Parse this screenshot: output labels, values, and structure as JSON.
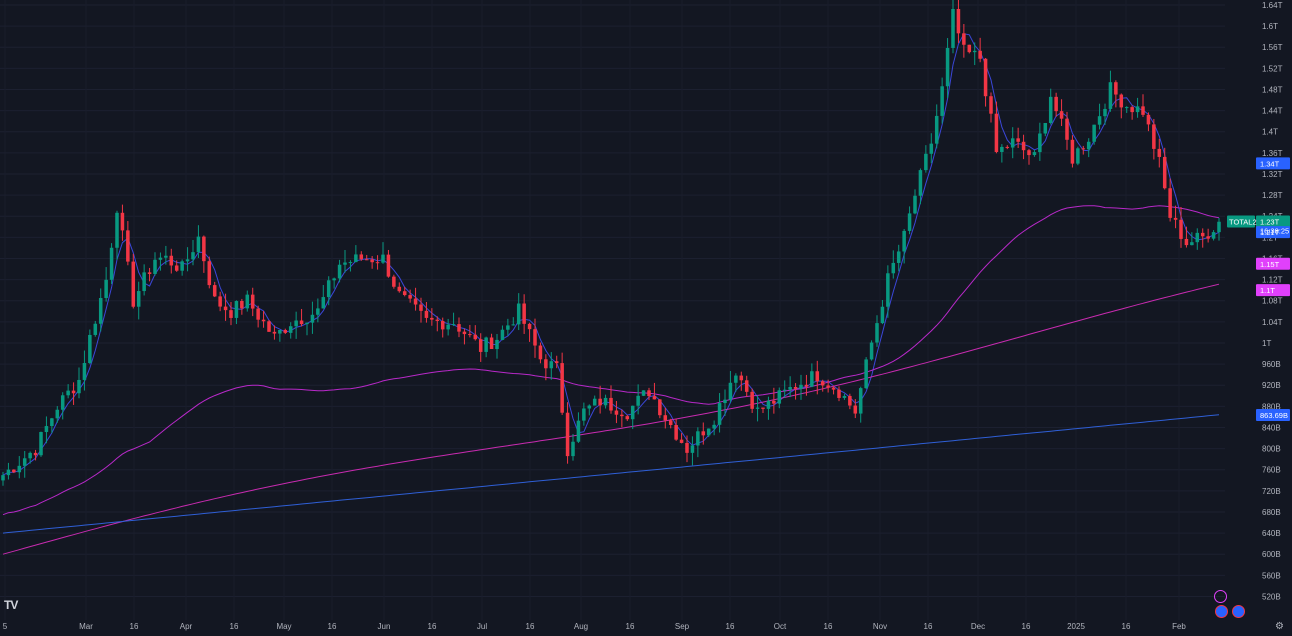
{
  "chart_data": {
    "type": "candlestick",
    "symbol": "TOTAL2",
    "countdown": "16:38:25",
    "y_axis": {
      "scale": "linear",
      "range": [
        500000000000,
        1640000000000
      ],
      "ticks": [
        "1.64T",
        "1.6T",
        "1.56T",
        "1.52T",
        "1.48T",
        "1.44T",
        "1.4T",
        "1.36T",
        "1.32T",
        "1.28T",
        "1.24T",
        "1.2T",
        "1.16T",
        "1.12T",
        "1.08T",
        "1.04T",
        "1T",
        "960B",
        "920B",
        "880B",
        "840B",
        "800B",
        "760B",
        "720B",
        "680B",
        "640B",
        "600B",
        "560B",
        "520B"
      ]
    },
    "x_axis": {
      "ticks": [
        "5",
        "Mar",
        "16",
        "Apr",
        "16",
        "May",
        "16",
        "Jun",
        "16",
        "Jul",
        "16",
        "Aug",
        "16",
        "Sep",
        "16",
        "Oct",
        "16",
        "Nov",
        "16",
        "Dec",
        "16",
        "2025",
        "16",
        "Feb"
      ]
    },
    "price_badges": [
      {
        "label": "1.34T",
        "value": 1.34,
        "color": "#2962ff"
      },
      {
        "label": "1.23T",
        "value": 1.23,
        "color": "#089981"
      },
      {
        "label": "1.21T",
        "value": 1.21,
        "color": "#2962ff"
      },
      {
        "label": "1.15T",
        "value": 1.15,
        "color": "#e040fb"
      },
      {
        "label": "1.1T",
        "value": 1.1,
        "color": "#e040fb"
      },
      {
        "label": "863.69B",
        "value": 0.86369,
        "color": "#2962ff"
      }
    ],
    "symbol_badge_color": "#089981",
    "colors": {
      "up": "#089981",
      "down": "#f23645",
      "ma_short": "#3b47d9",
      "ma_mid": "#b829c9",
      "ma_long": "#c82bb0",
      "ma_longest": "#2f5fd6"
    },
    "price_path_T": [
      [
        0,
        0.75
      ],
      [
        6,
        0.8
      ],
      [
        10,
        0.88
      ],
      [
        14,
        0.93
      ],
      [
        16,
        1.01
      ],
      [
        19,
        1.12
      ],
      [
        21,
        1.26
      ],
      [
        24,
        1.08
      ],
      [
        28,
        1.16
      ],
      [
        30,
        1.16
      ],
      [
        33,
        1.14
      ],
      [
        36,
        1.2
      ],
      [
        39,
        1.08
      ],
      [
        42,
        1.06
      ],
      [
        45,
        1.08
      ],
      [
        50,
        1.01
      ],
      [
        53,
        1.04
      ],
      [
        58,
        1.06
      ],
      [
        62,
        1.15
      ],
      [
        66,
        1.16
      ],
      [
        70,
        1.16
      ],
      [
        73,
        1.09
      ],
      [
        78,
        1.04
      ],
      [
        83,
        1.04
      ],
      [
        88,
        0.99
      ],
      [
        91,
        1.01
      ],
      [
        95,
        1.06
      ],
      [
        99,
        0.97
      ],
      [
        102,
        0.95
      ],
      [
        104,
        0.8
      ],
      [
        107,
        0.87
      ],
      [
        110,
        0.89
      ],
      [
        115,
        0.87
      ],
      [
        119,
        0.91
      ],
      [
        122,
        0.86
      ],
      [
        126,
        0.8
      ],
      [
        131,
        0.86
      ],
      [
        135,
        0.95
      ],
      [
        139,
        0.87
      ],
      [
        142,
        0.89
      ],
      [
        146,
        0.92
      ],
      [
        150,
        0.94
      ],
      [
        154,
        0.91
      ],
      [
        157,
        0.87
      ],
      [
        160,
        1.0
      ],
      [
        163,
        1.12
      ],
      [
        166,
        1.2
      ],
      [
        168,
        1.28
      ],
      [
        171,
        1.38
      ],
      [
        173,
        1.48
      ],
      [
        175,
        1.62
      ],
      [
        177,
        1.55
      ],
      [
        180,
        1.54
      ],
      [
        183,
        1.36
      ],
      [
        186,
        1.38
      ],
      [
        190,
        1.35
      ],
      [
        193,
        1.47
      ],
      [
        197,
        1.35
      ],
      [
        200,
        1.39
      ],
      [
        204,
        1.48
      ],
      [
        207,
        1.45
      ],
      [
        210,
        1.44
      ],
      [
        213,
        1.34
      ],
      [
        215,
        1.24
      ],
      [
        218,
        1.19
      ],
      [
        221,
        1.2
      ],
      [
        224,
        1.23
      ]
    ]
  }
}
